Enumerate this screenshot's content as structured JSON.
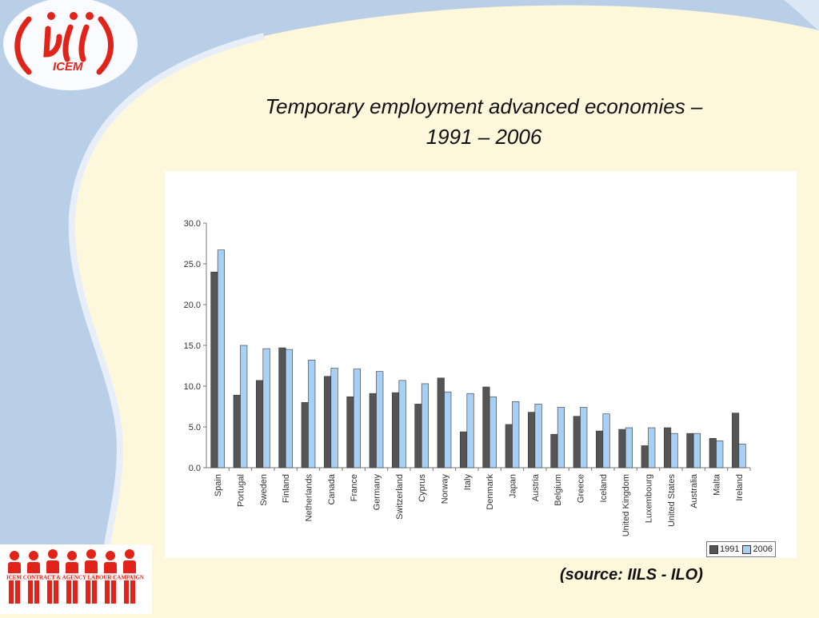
{
  "slide": {
    "title_line1": "Temporary employment advanced economies –",
    "title_line2": "1991 – 2006",
    "source": "(source: IILS - ILO)",
    "logo_top_text": "ICEM",
    "logo_bottom_text": "ICEM CONTRACT & AGENCY LABOUR CAMPAIGN",
    "colors": {
      "brand_red": "#e2231a",
      "background": "#fdf7dc",
      "swoosh_blue": "#b9cfe8"
    }
  },
  "chart_data": {
    "type": "bar",
    "title": "",
    "xlabel": "",
    "ylabel": "",
    "ylim": [
      0,
      30
    ],
    "yticks": [
      "0.0",
      "5.0",
      "10.0",
      "15.0",
      "20.0",
      "25.0",
      "30.0"
    ],
    "legend_position": "bottom-right",
    "grid": false,
    "categories": [
      "Spain",
      "Portugal",
      "Sweden",
      "Finland",
      "Netherlands",
      "Canada",
      "France",
      "Germany",
      "Switzerland",
      "Cyprus",
      "Norway",
      "Italy",
      "Denmark",
      "Japan",
      "Austria",
      "Belgium",
      "Greece",
      "Iceland",
      "United Kingdom",
      "Luxembourg",
      "United States",
      "Australia",
      "Malta",
      "Ireland"
    ],
    "series": [
      {
        "name": "1991",
        "color": "#555555",
        "values": [
          24.0,
          8.9,
          10.7,
          14.7,
          8.0,
          11.2,
          8.7,
          9.1,
          9.2,
          7.8,
          11.0,
          4.4,
          9.9,
          5.3,
          6.8,
          4.1,
          6.3,
          4.5,
          4.7,
          2.7,
          4.9,
          4.2,
          3.6,
          6.7
        ]
      },
      {
        "name": "2006",
        "color": "#a8d0f5",
        "values": [
          26.7,
          15.0,
          14.6,
          14.5,
          13.2,
          12.2,
          12.1,
          11.8,
          10.7,
          10.3,
          9.3,
          9.1,
          8.7,
          8.1,
          7.8,
          7.4,
          7.4,
          6.6,
          4.9,
          4.9,
          4.2,
          4.2,
          3.3,
          2.9
        ]
      }
    ]
  }
}
